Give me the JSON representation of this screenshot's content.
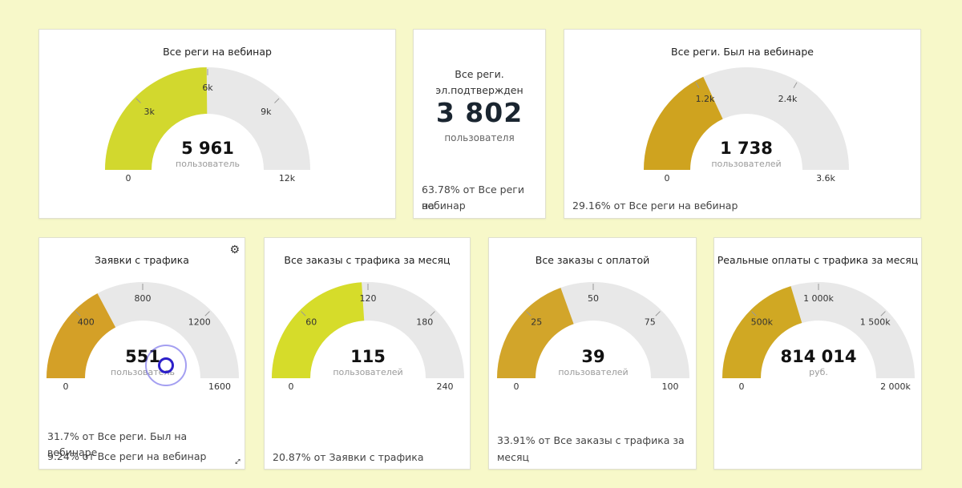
{
  "gauges": [
    {
      "id": "g1",
      "title": "Все реги на вебинар",
      "value": "5 961",
      "unit": "пользователь",
      "fill_fraction": 0.4968,
      "fill_color": "#d2d82e",
      "ticks": [
        "0",
        "3k",
        "6k",
        "9k",
        "12k"
      ],
      "footer": []
    },
    {
      "id": "g2",
      "title": "Все реги. Был на вебинаре",
      "value": "1 738",
      "unit": "пользователей",
      "fill_fraction": 0.362,
      "fill_color": "#cfa31f",
      "ticks": [
        "0",
        "1.2k",
        "2.4k",
        "3.6k"
      ],
      "footer": [
        "29.16% от Все реги на вебинар"
      ]
    },
    {
      "id": "g3",
      "title": "Заявки с трафика",
      "value": "551",
      "unit": "пользователь",
      "fill_fraction": 0.344,
      "fill_color": "#d4a027",
      "ticks": [
        "0",
        "400",
        "800",
        "1200",
        "1600"
      ],
      "footer": [
        "31.7% от Все реги. Был на вебинаре",
        "9.24% от Все реги на вебинар"
      ]
    },
    {
      "id": "g4",
      "title": "Все заказы с трафика за месяц",
      "value": "115",
      "unit": "пользователей",
      "fill_fraction": 0.479,
      "fill_color": "#d6dc2a",
      "ticks": [
        "0",
        "60",
        "120",
        "180",
        "240"
      ],
      "footer": [
        "20.87% от Заявки с трафика"
      ]
    },
    {
      "id": "g5",
      "title": "Все заказы с оплатой",
      "value": "39",
      "unit": "пользователей",
      "fill_fraction": 0.39,
      "fill_color": "#d2a52a",
      "ticks": [
        "0",
        "25",
        "50",
        "75",
        "100"
      ],
      "footer": [
        "33.91% от Все заказы с трафика за",
        "месяц"
      ]
    },
    {
      "id": "g6",
      "title": "Реальные оплаты с трафика за месяц",
      "value": "814 014",
      "unit": "руб.",
      "fill_fraction": 0.407,
      "fill_color": "#d0a823",
      "ticks": [
        "0",
        "500k",
        "1 000k",
        "1 500k",
        "2 000k"
      ],
      "footer": []
    }
  ],
  "kpi": {
    "title_line1": "Все реги.",
    "title_line2": "эл.подтвержден",
    "value": "3 802",
    "unit": "пользователя",
    "footer_line1": "63.78% от Все реги на",
    "footer_line2": "вебинар"
  },
  "icons": {
    "gear": "gear-icon",
    "resize": "resize-icon"
  },
  "colors": {
    "background": "#f7f8c9",
    "gauge_track": "#e8e8e8"
  }
}
